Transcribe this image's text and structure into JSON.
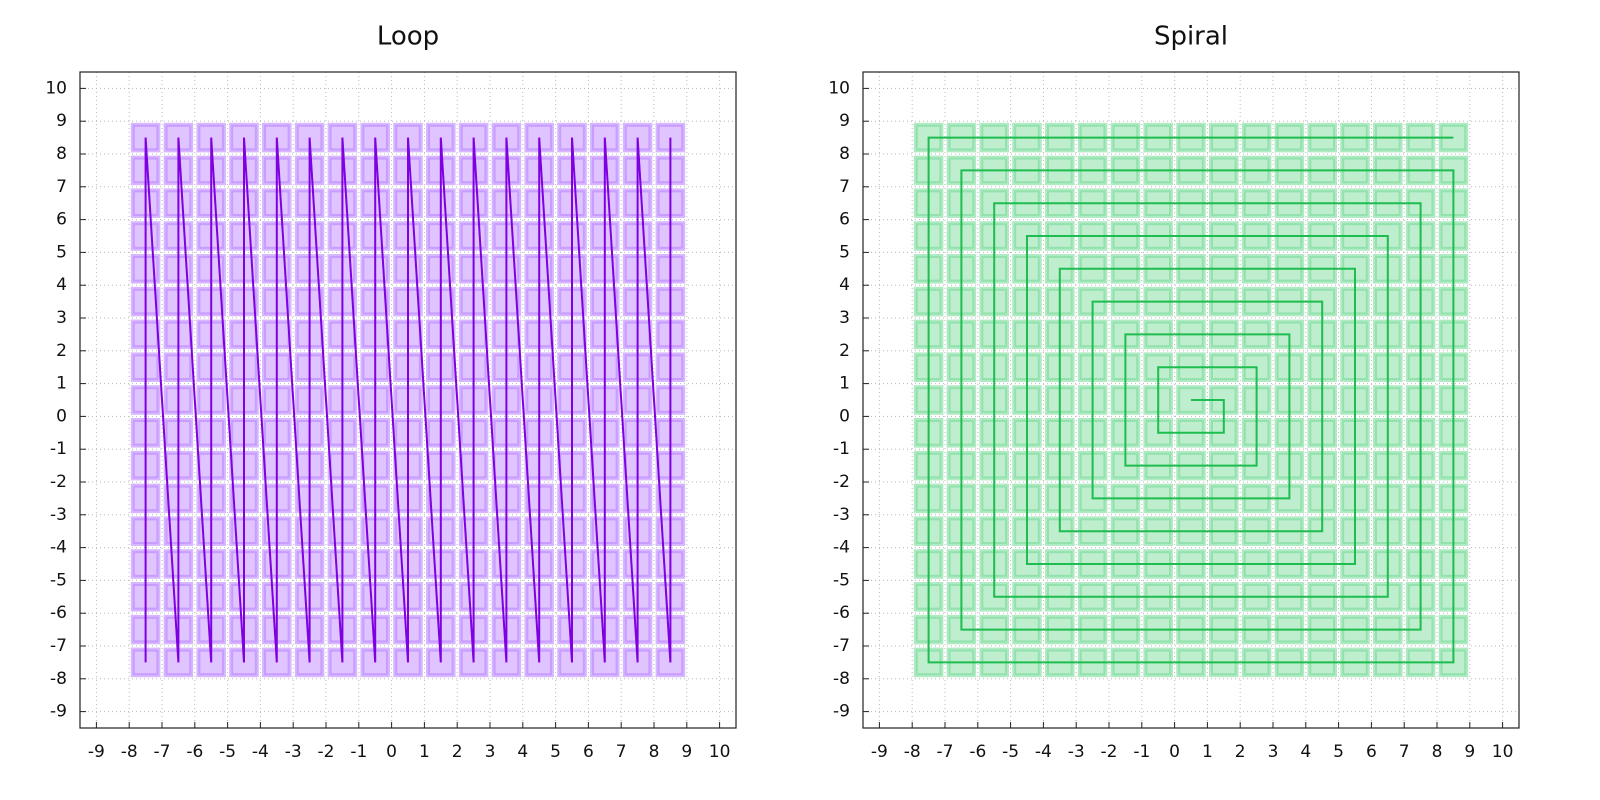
{
  "chart_data": [
    {
      "type": "line",
      "title": "Loop",
      "marker": "square",
      "color": "#7f00e0",
      "marker_color": "#b77cff",
      "grid": true,
      "xlim": [
        -9.5,
        10.5
      ],
      "ylim": [
        -9.5,
        10.5
      ],
      "xticks": [
        -9,
        -8,
        -7,
        -6,
        -5,
        -4,
        -3,
        -2,
        -1,
        0,
        1,
        2,
        3,
        4,
        5,
        6,
        7,
        8,
        9,
        10
      ],
      "yticks": [
        -9,
        -8,
        -7,
        -6,
        -5,
        -4,
        -3,
        -2,
        -1,
        0,
        1,
        2,
        3,
        4,
        5,
        6,
        7,
        8,
        9,
        10
      ],
      "x": [
        -7.5,
        -7.5,
        -7.5,
        -7.5,
        -7.5,
        -7.5,
        -7.5,
        -7.5,
        -7.5,
        -7.5,
        -7.5,
        -7.5,
        -7.5,
        -7.5,
        -7.5,
        -7.5,
        -7.5,
        -6.5,
        -6.5,
        -6.5,
        -6.5,
        -6.5,
        -6.5,
        -6.5,
        -6.5,
        -6.5,
        -6.5,
        -6.5,
        -6.5,
        -6.5,
        -6.5,
        -6.5,
        -6.5,
        -6.5,
        -5.5,
        -5.5,
        -5.5,
        -5.5,
        -5.5,
        -5.5,
        -5.5,
        -5.5,
        -5.5,
        -5.5,
        -5.5,
        -5.5,
        -5.5,
        -5.5,
        -5.5,
        -5.5,
        -5.5,
        -4.5,
        -4.5,
        -4.5,
        -4.5,
        -4.5,
        -4.5,
        -4.5,
        -4.5,
        -4.5,
        -4.5,
        -4.5,
        -4.5,
        -4.5,
        -4.5,
        -4.5,
        -4.5,
        -4.5,
        -3.5,
        -3.5,
        -3.5,
        -3.5,
        -3.5,
        -3.5,
        -3.5,
        -3.5,
        -3.5,
        -3.5,
        -3.5,
        -3.5,
        -3.5,
        -3.5,
        -3.5,
        -3.5,
        -3.5,
        -2.5,
        -2.5,
        -2.5,
        -2.5,
        -2.5,
        -2.5,
        -2.5,
        -2.5,
        -2.5,
        -2.5,
        -2.5,
        -2.5,
        -2.5,
        -2.5,
        -2.5,
        -2.5,
        -2.5,
        -1.5,
        -1.5,
        -1.5,
        -1.5,
        -1.5,
        -1.5,
        -1.5,
        -1.5,
        -1.5,
        -1.5,
        -1.5,
        -1.5,
        -1.5,
        -1.5,
        -1.5,
        -1.5,
        -1.5,
        -0.5,
        -0.5,
        -0.5,
        -0.5,
        -0.5,
        -0.5,
        -0.5,
        -0.5,
        -0.5,
        -0.5,
        -0.5,
        -0.5,
        -0.5,
        -0.5,
        -0.5,
        -0.5,
        -0.5,
        0.5,
        0.5,
        0.5,
        0.5,
        0.5,
        0.5,
        0.5,
        0.5,
        0.5,
        0.5,
        0.5,
        0.5,
        0.5,
        0.5,
        0.5,
        0.5,
        0.5,
        1.5,
        1.5,
        1.5,
        1.5,
        1.5,
        1.5,
        1.5,
        1.5,
        1.5,
        1.5,
        1.5,
        1.5,
        1.5,
        1.5,
        1.5,
        1.5,
        1.5,
        2.5,
        2.5,
        2.5,
        2.5,
        2.5,
        2.5,
        2.5,
        2.5,
        2.5,
        2.5,
        2.5,
        2.5,
        2.5,
        2.5,
        2.5,
        2.5,
        2.5,
        3.5,
        3.5,
        3.5,
        3.5,
        3.5,
        3.5,
        3.5,
        3.5,
        3.5,
        3.5,
        3.5,
        3.5,
        3.5,
        3.5,
        3.5,
        3.5,
        3.5,
        4.5,
        4.5,
        4.5,
        4.5,
        4.5,
        4.5,
        4.5,
        4.5,
        4.5,
        4.5,
        4.5,
        4.5,
        4.5,
        4.5,
        4.5,
        4.5,
        4.5,
        5.5,
        5.5,
        5.5,
        5.5,
        5.5,
        5.5,
        5.5,
        5.5,
        5.5,
        5.5,
        5.5,
        5.5,
        5.5,
        5.5,
        5.5,
        5.5,
        5.5,
        6.5,
        6.5,
        6.5,
        6.5,
        6.5,
        6.5,
        6.5,
        6.5,
        6.5,
        6.5,
        6.5,
        6.5,
        6.5,
        6.5,
        6.5,
        6.5,
        6.5,
        7.5,
        7.5,
        7.5,
        7.5,
        7.5,
        7.5,
        7.5,
        7.5,
        7.5,
        7.5,
        7.5,
        7.5,
        7.5,
        7.5,
        7.5,
        7.5,
        7.5,
        8.5,
        8.5,
        8.5,
        8.5,
        8.5,
        8.5,
        8.5,
        8.5,
        8.5,
        8.5,
        8.5,
        8.5,
        8.5,
        8.5,
        8.5,
        8.5,
        8.5
      ],
      "y": [
        -7.5,
        -6.5,
        -5.5,
        -4.5,
        -3.5,
        -2.5,
        -1.5,
        -0.5,
        0.5,
        1.5,
        2.5,
        3.5,
        4.5,
        5.5,
        6.5,
        7.5,
        8.5,
        -7.5,
        -6.5,
        -5.5,
        -4.5,
        -3.5,
        -2.5,
        -1.5,
        -0.5,
        0.5,
        1.5,
        2.5,
        3.5,
        4.5,
        5.5,
        6.5,
        7.5,
        8.5,
        -7.5,
        -6.5,
        -5.5,
        -4.5,
        -3.5,
        -2.5,
        -1.5,
        -0.5,
        0.5,
        1.5,
        2.5,
        3.5,
        4.5,
        5.5,
        6.5,
        7.5,
        8.5,
        -7.5,
        -6.5,
        -5.5,
        -4.5,
        -3.5,
        -2.5,
        -1.5,
        -0.5,
        0.5,
        1.5,
        2.5,
        3.5,
        4.5,
        5.5,
        6.5,
        7.5,
        8.5,
        -7.5,
        -6.5,
        -5.5,
        -4.5,
        -3.5,
        -2.5,
        -1.5,
        -0.5,
        0.5,
        1.5,
        2.5,
        3.5,
        4.5,
        5.5,
        6.5,
        7.5,
        8.5,
        -7.5,
        -6.5,
        -5.5,
        -4.5,
        -3.5,
        -2.5,
        -1.5,
        -0.5,
        0.5,
        1.5,
        2.5,
        3.5,
        4.5,
        5.5,
        6.5,
        7.5,
        8.5,
        -7.5,
        -6.5,
        -5.5,
        -4.5,
        -3.5,
        -2.5,
        -1.5,
        -0.5,
        0.5,
        1.5,
        2.5,
        3.5,
        4.5,
        5.5,
        6.5,
        7.5,
        8.5,
        -7.5,
        -6.5,
        -5.5,
        -4.5,
        -3.5,
        -2.5,
        -1.5,
        -0.5,
        0.5,
        1.5,
        2.5,
        3.5,
        4.5,
        5.5,
        6.5,
        7.5,
        8.5,
        -7.5,
        -6.5,
        -5.5,
        -4.5,
        -3.5,
        -2.5,
        -1.5,
        -0.5,
        0.5,
        1.5,
        2.5,
        3.5,
        4.5,
        5.5,
        6.5,
        7.5,
        8.5,
        -7.5,
        -6.5,
        -5.5,
        -4.5,
        -3.5,
        -2.5,
        -1.5,
        -0.5,
        0.5,
        1.5,
        2.5,
        3.5,
        4.5,
        5.5,
        6.5,
        7.5,
        8.5,
        -7.5,
        -6.5,
        -5.5,
        -4.5,
        -3.5,
        -2.5,
        -1.5,
        -0.5,
        0.5,
        1.5,
        2.5,
        3.5,
        4.5,
        5.5,
        6.5,
        7.5,
        8.5,
        -7.5,
        -6.5,
        -5.5,
        -4.5,
        -3.5,
        -2.5,
        -1.5,
        -0.5,
        0.5,
        1.5,
        2.5,
        3.5,
        4.5,
        5.5,
        6.5,
        7.5,
        8.5,
        -7.5,
        -6.5,
        -5.5,
        -4.5,
        -3.5,
        -2.5,
        -1.5,
        -0.5,
        0.5,
        1.5,
        2.5,
        3.5,
        4.5,
        5.5,
        6.5,
        7.5,
        8.5,
        -7.5,
        -6.5,
        -5.5,
        -4.5,
        -3.5,
        -2.5,
        -1.5,
        -0.5,
        0.5,
        1.5,
        2.5,
        3.5,
        4.5,
        5.5,
        6.5,
        7.5,
        8.5,
        -7.5,
        -6.5,
        -5.5,
        -4.5,
        -3.5,
        -2.5,
        -1.5,
        -0.5,
        0.5,
        1.5,
        2.5,
        3.5,
        4.5,
        5.5,
        6.5,
        7.5,
        8.5,
        -7.5,
        -6.5,
        -5.5,
        -4.5,
        -3.5,
        -2.5,
        -1.5,
        -0.5,
        0.5,
        1.5,
        2.5,
        3.5,
        4.5,
        5.5,
        6.5,
        7.5,
        8.5,
        -7.5,
        -6.5,
        -5.5,
        -4.5,
        -3.5,
        -2.5,
        -1.5,
        -0.5,
        0.5,
        1.5,
        2.5,
        3.5,
        4.5,
        5.5,
        6.5,
        7.5,
        8.5
      ]
    },
    {
      "type": "line",
      "title": "Spiral",
      "marker": "square",
      "color": "#1dbd4f",
      "marker_color": "#6fd992",
      "grid": true,
      "xlim": [
        -9.5,
        10.5
      ],
      "ylim": [
        -9.5,
        10.5
      ],
      "xticks": [
        -9,
        -8,
        -7,
        -6,
        -5,
        -4,
        -3,
        -2,
        -1,
        0,
        1,
        2,
        3,
        4,
        5,
        6,
        7,
        8,
        9,
        10
      ],
      "yticks": [
        -9,
        -8,
        -7,
        -6,
        -5,
        -4,
        -3,
        -2,
        -1,
        0,
        1,
        2,
        3,
        4,
        5,
        6,
        7,
        8,
        9,
        10
      ],
      "x": [
        0.5,
        1.5,
        1.5,
        0.5,
        -0.5,
        -0.5,
        -0.5,
        0.5,
        1.5,
        2.5,
        2.5,
        2.5,
        2.5,
        1.5,
        0.5,
        -0.5,
        -1.5,
        -1.5,
        -1.5,
        -1.5,
        -1.5,
        -0.5,
        0.5,
        1.5,
        2.5,
        3.5,
        3.5,
        3.5,
        3.5,
        3.5,
        3.5,
        2.5,
        1.5,
        0.5,
        -0.5,
        -1.5,
        -2.5,
        -2.5,
        -2.5,
        -2.5,
        -2.5,
        -2.5,
        -2.5,
        -1.5,
        -0.5,
        0.5,
        1.5,
        2.5,
        3.5,
        4.5,
        4.5,
        4.5,
        4.5,
        4.5,
        4.5,
        4.5,
        4.5,
        3.5,
        2.5,
        1.5,
        0.5,
        -0.5,
        -1.5,
        -2.5,
        -3.5,
        -3.5,
        -3.5,
        -3.5,
        -3.5,
        -3.5,
        -3.5,
        -3.5,
        -3.5,
        -2.5,
        -1.5,
        -0.5,
        0.5,
        1.5,
        2.5,
        3.5,
        4.5,
        5.5,
        5.5,
        5.5,
        5.5,
        5.5,
        5.5,
        5.5,
        5.5,
        5.5,
        5.5,
        4.5,
        3.5,
        2.5,
        1.5,
        0.5,
        -0.5,
        -1.5,
        -2.5,
        -3.5,
        -4.5,
        -4.5,
        -4.5,
        -4.5,
        -4.5,
        -4.5,
        -4.5,
        -4.5,
        -4.5,
        -4.5,
        -4.5,
        -3.5,
        -2.5,
        -1.5,
        -0.5,
        0.5,
        1.5,
        2.5,
        3.5,
        4.5,
        5.5,
        6.5,
        6.5,
        6.5,
        6.5,
        6.5,
        6.5,
        6.5,
        6.5,
        6.5,
        6.5,
        6.5,
        6.5,
        5.5,
        4.5,
        3.5,
        2.5,
        1.5,
        0.5,
        -0.5,
        -1.5,
        -2.5,
        -3.5,
        -4.5,
        -5.5,
        -5.5,
        -5.5,
        -5.5,
        -5.5,
        -5.5,
        -5.5,
        -5.5,
        -5.5,
        -5.5,
        -5.5,
        -5.5,
        -5.5,
        -4.5,
        -3.5,
        -2.5,
        -1.5,
        -0.5,
        0.5,
        1.5,
        2.5,
        3.5,
        4.5,
        5.5,
        6.5,
        7.5,
        7.5,
        7.5,
        7.5,
        7.5,
        7.5,
        7.5,
        7.5,
        7.5,
        7.5,
        7.5,
        7.5,
        7.5,
        7.5,
        6.5,
        5.5,
        4.5,
        3.5,
        2.5,
        1.5,
        0.5,
        -0.5,
        -1.5,
        -2.5,
        -3.5,
        -4.5,
        -5.5,
        -6.5,
        -6.5,
        -6.5,
        -6.5,
        -6.5,
        -6.5,
        -6.5,
        -6.5,
        -6.5,
        -6.5,
        -6.5,
        -6.5,
        -6.5,
        -6.5,
        -6.5,
        -5.5,
        -4.5,
        -3.5,
        -2.5,
        -1.5,
        -0.5,
        0.5,
        1.5,
        2.5,
        3.5,
        4.5,
        5.5,
        6.5,
        7.5,
        8.5,
        8.5,
        8.5,
        8.5,
        8.5,
        8.5,
        8.5,
        8.5,
        8.5,
        8.5,
        8.5,
        8.5,
        8.5,
        8.5,
        8.5,
        8.5,
        7.5,
        6.5,
        5.5,
        4.5,
        3.5,
        2.5,
        1.5,
        0.5,
        -0.5,
        -1.5,
        -2.5,
        -3.5,
        -4.5,
        -5.5,
        -6.5,
        -7.5,
        -7.5,
        -7.5,
        -7.5,
        -7.5,
        -7.5,
        -7.5,
        -7.5,
        -7.5,
        -7.5,
        -7.5,
        -7.5,
        -7.5,
        -7.5,
        -7.5,
        -7.5,
        -7.5,
        -6.5,
        -5.5,
        -4.5,
        -3.5,
        -2.5,
        -1.5,
        -0.5,
        0.5,
        1.5,
        2.5,
        3.5,
        4.5,
        5.5,
        6.5,
        7.5,
        8.5
      ],
      "y": [
        0.5,
        0.5,
        -0.5,
        -0.5,
        -0.5,
        0.5,
        1.5,
        1.5,
        1.5,
        1.5,
        0.5,
        -0.5,
        -1.5,
        -1.5,
        -1.5,
        -1.5,
        -1.5,
        -0.5,
        0.5,
        1.5,
        2.5,
        2.5,
        2.5,
        2.5,
        2.5,
        2.5,
        1.5,
        0.5,
        -0.5,
        -1.5,
        -2.5,
        -2.5,
        -2.5,
        -2.5,
        -2.5,
        -2.5,
        -2.5,
        -1.5,
        -0.5,
        0.5,
        1.5,
        2.5,
        3.5,
        3.5,
        3.5,
        3.5,
        3.5,
        3.5,
        3.5,
        3.5,
        2.5,
        1.5,
        0.5,
        -0.5,
        -1.5,
        -2.5,
        -3.5,
        -3.5,
        -3.5,
        -3.5,
        -3.5,
        -3.5,
        -3.5,
        -3.5,
        -3.5,
        -2.5,
        -1.5,
        -0.5,
        0.5,
        1.5,
        2.5,
        3.5,
        4.5,
        4.5,
        4.5,
        4.5,
        4.5,
        4.5,
        4.5,
        4.5,
        4.5,
        4.5,
        3.5,
        2.5,
        1.5,
        0.5,
        -0.5,
        -1.5,
        -2.5,
        -3.5,
        -4.5,
        -4.5,
        -4.5,
        -4.5,
        -4.5,
        -4.5,
        -4.5,
        -4.5,
        -4.5,
        -4.5,
        -4.5,
        -3.5,
        -2.5,
        -1.5,
        -0.5,
        0.5,
        1.5,
        2.5,
        3.5,
        4.5,
        5.5,
        5.5,
        5.5,
        5.5,
        5.5,
        5.5,
        5.5,
        5.5,
        5.5,
        5.5,
        5.5,
        5.5,
        4.5,
        3.5,
        2.5,
        1.5,
        0.5,
        -0.5,
        -1.5,
        -2.5,
        -3.5,
        -4.5,
        -5.5,
        -5.5,
        -5.5,
        -5.5,
        -5.5,
        -5.5,
        -5.5,
        -5.5,
        -5.5,
        -5.5,
        -5.5,
        -5.5,
        -5.5,
        -4.5,
        -3.5,
        -2.5,
        -1.5,
        -0.5,
        0.5,
        1.5,
        2.5,
        3.5,
        4.5,
        5.5,
        6.5,
        6.5,
        6.5,
        6.5,
        6.5,
        6.5,
        6.5,
        6.5,
        6.5,
        6.5,
        6.5,
        6.5,
        6.5,
        6.5,
        5.5,
        4.5,
        3.5,
        2.5,
        1.5,
        0.5,
        -0.5,
        -1.5,
        -2.5,
        -3.5,
        -4.5,
        -5.5,
        -6.5,
        -6.5,
        -6.5,
        -6.5,
        -6.5,
        -6.5,
        -6.5,
        -6.5,
        -6.5,
        -6.5,
        -6.5,
        -6.5,
        -6.5,
        -6.5,
        -6.5,
        -5.5,
        -4.5,
        -3.5,
        -2.5,
        -1.5,
        -0.5,
        0.5,
        1.5,
        2.5,
        3.5,
        4.5,
        5.5,
        6.5,
        7.5,
        7.5,
        7.5,
        7.5,
        7.5,
        7.5,
        7.5,
        7.5,
        7.5,
        7.5,
        7.5,
        7.5,
        7.5,
        7.5,
        7.5,
        7.5,
        6.5,
        5.5,
        4.5,
        3.5,
        2.5,
        1.5,
        0.5,
        -0.5,
        -1.5,
        -2.5,
        -3.5,
        -4.5,
        -5.5,
        -6.5,
        -7.5,
        -7.5,
        -7.5,
        -7.5,
        -7.5,
        -7.5,
        -7.5,
        -7.5,
        -7.5,
        -7.5,
        -7.5,
        -7.5,
        -7.5,
        -7.5,
        -7.5,
        -7.5,
        -7.5,
        -6.5,
        -5.5,
        -4.5,
        -3.5,
        -2.5,
        -1.5,
        -0.5,
        0.5,
        1.5,
        2.5,
        3.5,
        4.5,
        5.5,
        6.5,
        7.5,
        8.5,
        8.5,
        8.5,
        8.5,
        8.5,
        8.5,
        8.5,
        8.5,
        8.5,
        8.5,
        8.5,
        8.5,
        8.5,
        8.5,
        8.5,
        8.5,
        8.5
      ]
    }
  ]
}
